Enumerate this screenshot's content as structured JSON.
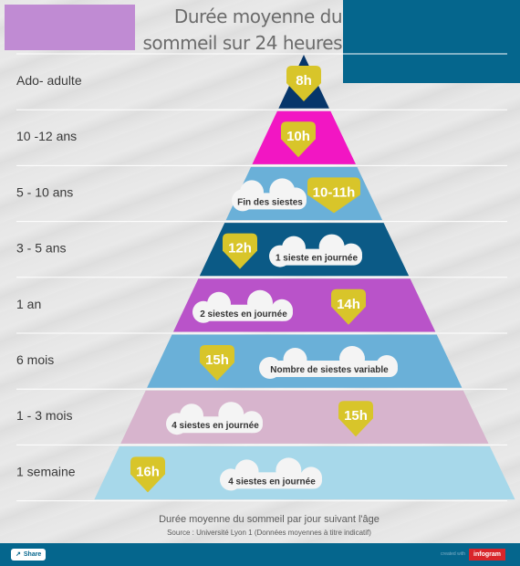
{
  "title_lines": [
    "Durée moyenne du",
    "sommeil sur 24 heures"
  ],
  "colors": {
    "purple_light": "#c08bd3",
    "teal_dark": "#05668d",
    "navy": "#06366a",
    "magenta": "#f216c3",
    "sky": "#6ab0d8",
    "teal": "#0b5a86",
    "violet": "#b953c9",
    "mauve": "#d7b4cd",
    "pale_blue": "#a7d8ea",
    "badge": "#d8c52a"
  },
  "chart_data": {
    "type": "pyramid",
    "title": "Durée moyenne du sommeil sur 24 heures",
    "levels": [
      {
        "label": "Ado- adulte",
        "hours_label": "8h",
        "hours": 8,
        "note": "",
        "color": "#06366a"
      },
      {
        "label": "10 -12 ans",
        "hours_label": "10h",
        "hours": 10,
        "note": "",
        "color": "#f216c3"
      },
      {
        "label": "5 - 10 ans",
        "hours_label": "10-11h",
        "hours": 10.5,
        "note": "Fin des siestes",
        "color": "#6ab0d8"
      },
      {
        "label": "3 - 5 ans",
        "hours_label": "12h",
        "hours": 12,
        "note": "1 sieste en journée",
        "color": "#0b5a86"
      },
      {
        "label": "1 an",
        "hours_label": "14h",
        "hours": 14,
        "note": "2 siestes en journée",
        "color": "#b953c9"
      },
      {
        "label": "6 mois",
        "hours_label": "15h",
        "hours": 15,
        "note": "Nombre de siestes variable",
        "color": "#6ab0d8"
      },
      {
        "label": "1 - 3 mois",
        "hours_label": "15h",
        "hours": 15,
        "note": "4 siestes en journée",
        "color": "#d7b4cd"
      },
      {
        "label": "1 semaine",
        "hours_label": "16h",
        "hours": 16,
        "note": "4 siestes en journée",
        "color": "#a7d8ea"
      }
    ]
  },
  "caption": "Durée moyenne du sommeil par jour suivant l'âge",
  "source": "Source : Université Lyon 1 (Données moyennes à titre indicatif)",
  "footer": {
    "share_label": "Share",
    "share_icon": "share-icon",
    "brand_pre": "created with",
    "brand": "infogram"
  }
}
